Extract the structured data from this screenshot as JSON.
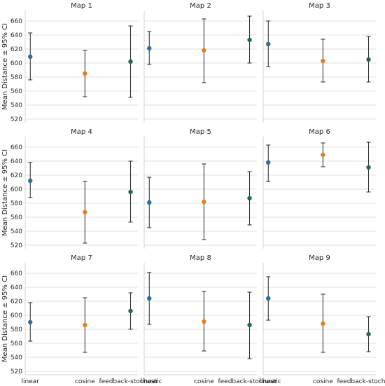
{
  "chart_data": {
    "type": "scatter",
    "layout": "3x3 small multiples, shared axes",
    "ylabel": "Mean Distance ± 95% CI",
    "ylim": [
      515,
      675
    ],
    "yticks": [
      520,
      540,
      560,
      580,
      600,
      620,
      640,
      660
    ],
    "categories": [
      "linear",
      "cosine",
      "feedback-stochastic"
    ],
    "grid": "horizontal",
    "colors": {
      "linear": "#2e6e96",
      "cosine": "#d9822b",
      "feedback-stochastic": "#226b47"
    },
    "panels": [
      {
        "title": "Map 1",
        "means": [
          609,
          585,
          602
        ],
        "lower": [
          576,
          552,
          551
        ],
        "upper": [
          643,
          618,
          653
        ]
      },
      {
        "title": "Map 2",
        "means": [
          621,
          618,
          633
        ],
        "lower": [
          598,
          572,
          600
        ],
        "upper": [
          645,
          663,
          667
        ]
      },
      {
        "title": "Map 3",
        "means": [
          627,
          603,
          605
        ],
        "lower": [
          595,
          573,
          573
        ],
        "upper": [
          660,
          634,
          638
        ]
      },
      {
        "title": "Map 4",
        "means": [
          612,
          567,
          596
        ],
        "lower": [
          588,
          523,
          553
        ],
        "upper": [
          638,
          611,
          640
        ]
      },
      {
        "title": "Map 5",
        "means": [
          581,
          582,
          587
        ],
        "lower": [
          545,
          528,
          549
        ],
        "upper": [
          617,
          636,
          625
        ]
      },
      {
        "title": "Map 6",
        "means": [
          638,
          649,
          631
        ],
        "lower": [
          611,
          632,
          596
        ],
        "upper": [
          663,
          666,
          667
        ]
      },
      {
        "title": "Map 7",
        "means": [
          590,
          586,
          606
        ],
        "lower": [
          563,
          547,
          580
        ],
        "upper": [
          618,
          625,
          632
        ]
      },
      {
        "title": "Map 8",
        "means": [
          624,
          591,
          586
        ],
        "lower": [
          587,
          549,
          538
        ],
        "upper": [
          661,
          634,
          633
        ]
      },
      {
        "title": "Map 9",
        "means": [
          624,
          588,
          573
        ],
        "lower": [
          593,
          547,
          548
        ],
        "upper": [
          655,
          630,
          598
        ]
      }
    ]
  }
}
